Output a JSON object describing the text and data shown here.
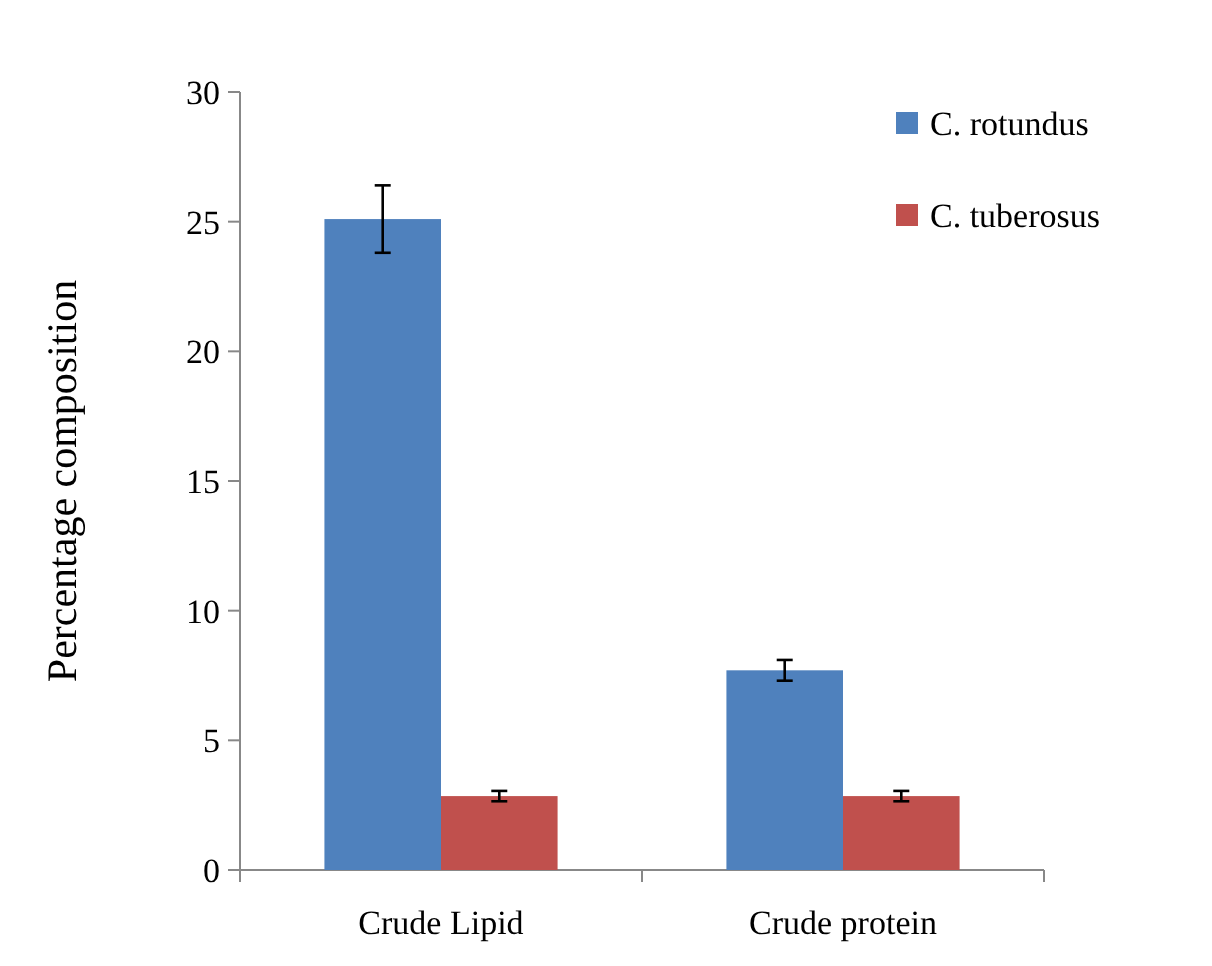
{
  "chart_data": {
    "type": "bar",
    "ylabel": "Percentage composition",
    "categories": [
      "Crude Lipid",
      "Crude protein"
    ],
    "series": [
      {
        "name": "C. rotundus",
        "color": "#4f81bd",
        "values": [
          25.1,
          7.7
        ],
        "errors": [
          1.3,
          0.4
        ]
      },
      {
        "name": "C. tuberosus",
        "color": "#c0504d",
        "values": [
          2.85,
          2.85
        ],
        "errors": [
          0.2,
          0.2
        ]
      }
    ],
    "ylim": [
      0,
      30
    ],
    "yticks": [
      0,
      5,
      10,
      15,
      20,
      25,
      30
    ],
    "grid": false,
    "legend": "top right"
  }
}
